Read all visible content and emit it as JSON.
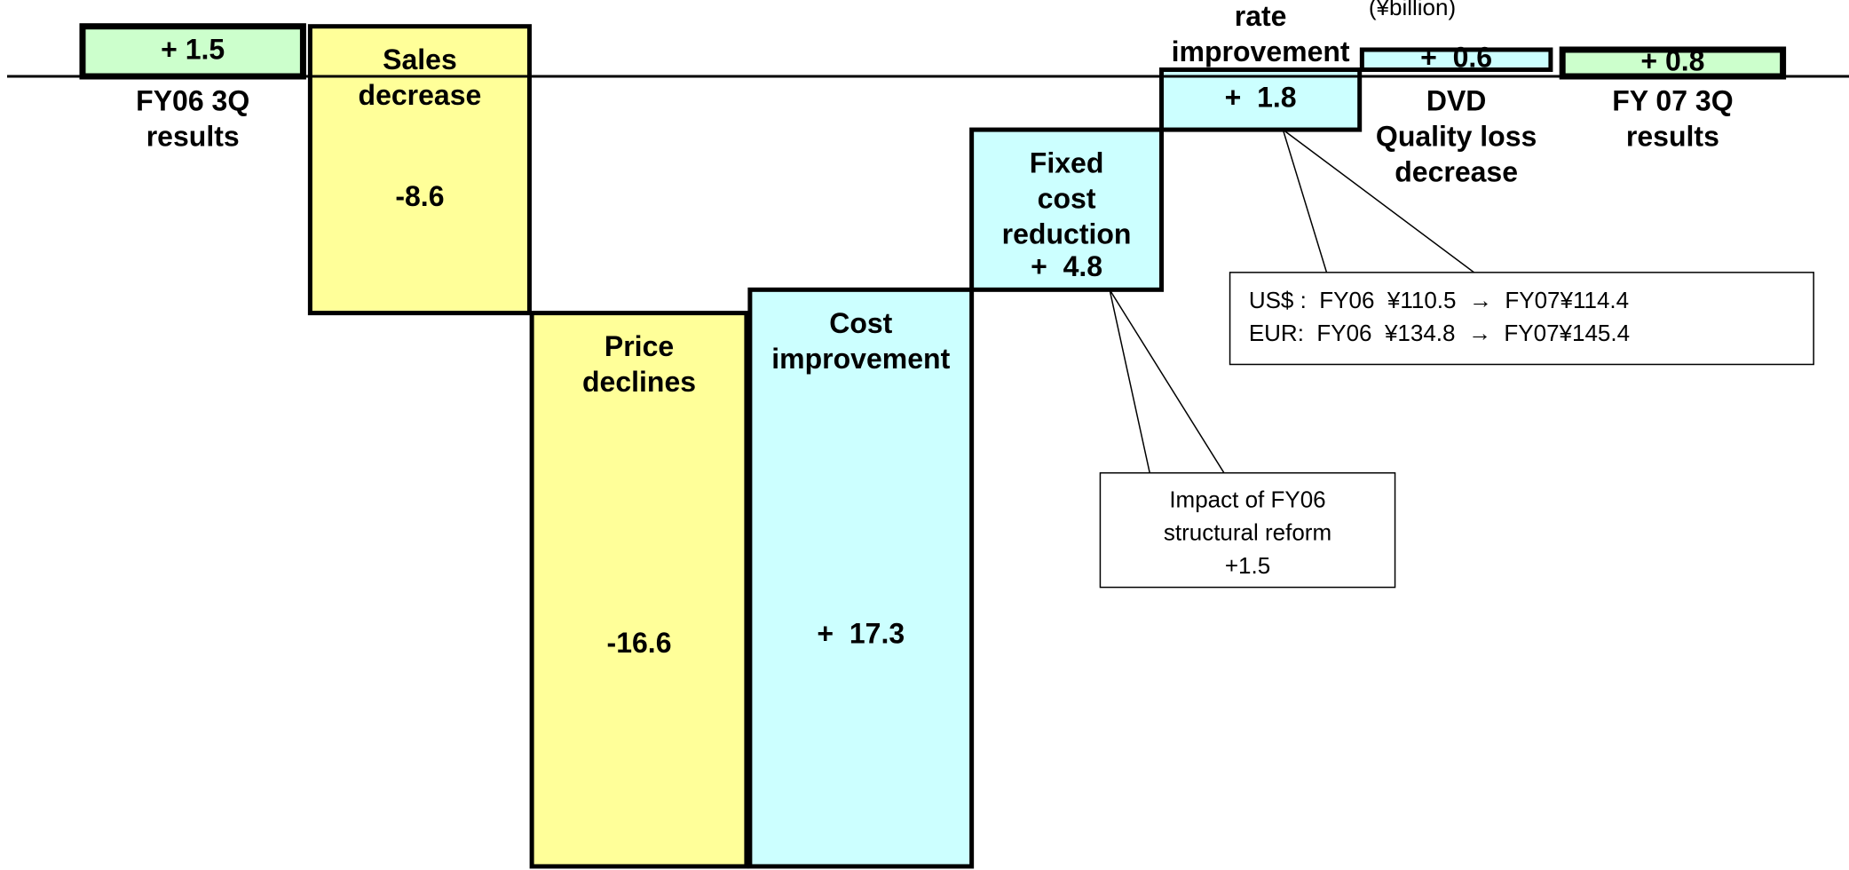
{
  "chart_data": {
    "type": "waterfall",
    "unit_label": "(¥billion)",
    "categories": [
      [
        "FY06 3Q",
        "results"
      ],
      [
        "Sales",
        "decrease"
      ],
      [
        "Price",
        "declines"
      ],
      [
        "Cost",
        "improvement"
      ],
      [
        "Fixed",
        "cost",
        "reduction"
      ],
      [
        "rate",
        "improvement"
      ],
      [
        "DVD",
        "Quality loss",
        "decrease"
      ],
      [
        "FY 07 3Q",
        "results"
      ]
    ],
    "values": [
      1.5,
      -8.6,
      -16.6,
      17.3,
      4.8,
      1.8,
      0.6,
      0.8
    ],
    "value_labels": [
      "+ 1.5",
      "-8.6",
      "-16.6",
      "+  17.3",
      "+  4.8",
      "+  1.8",
      "+  0.6",
      "+ 0.8"
    ],
    "measure": [
      "total",
      "relative",
      "relative",
      "relative",
      "relative",
      "relative",
      "relative",
      "total"
    ],
    "ylim": [
      -23.8,
      2.2
    ],
    "colors": {
      "total": "#ccffcc",
      "increase": "#ccffff",
      "decrease": "#ffff99"
    },
    "annotations": [
      {
        "lines": [
          "US$ :  FY06  ¥110.5  →  FY07¥114.4",
          "EUR:  FY06  ¥134.8  →  FY07¥145.4"
        ]
      },
      {
        "lines": [
          "Impact of FY06",
          "structural reform",
          "+1.5"
        ]
      }
    ]
  }
}
